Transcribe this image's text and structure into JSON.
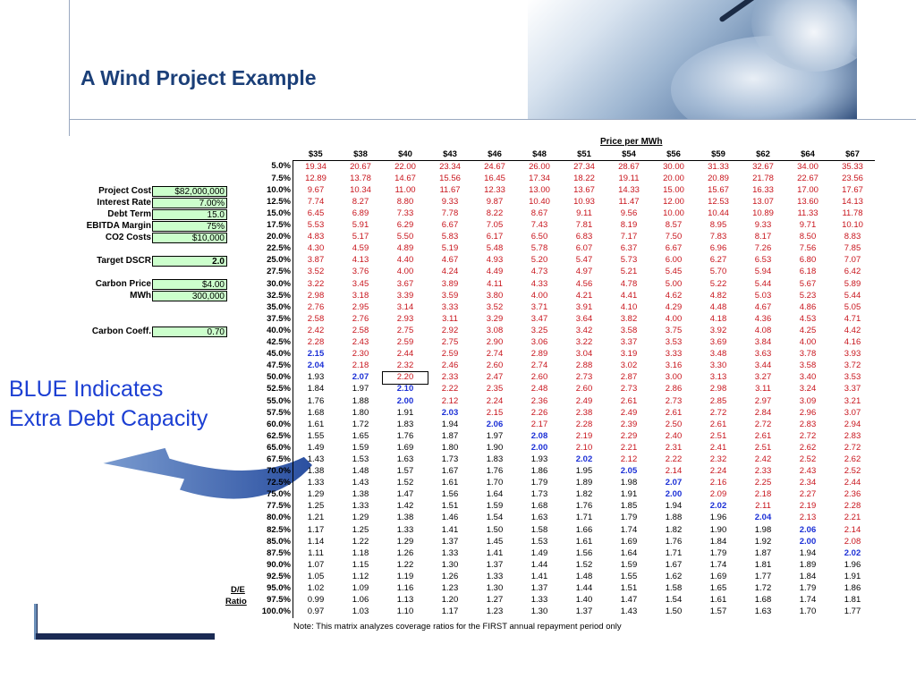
{
  "slide": {
    "title": "A Wind Project Example",
    "callout_line1": "BLUE Indicates",
    "callout_line2": "Extra Debt Capacity",
    "note": "Note: This matrix analyzes coverage ratios for the FIRST annual repayment period only"
  },
  "inputs": [
    {
      "label": "Project Cost",
      "value": "$82,000,000"
    },
    {
      "label": "Interest Rate",
      "value": "7.00%"
    },
    {
      "label": "Debt Term",
      "value": "15.0"
    },
    {
      "label": "EBITDA Margin",
      "value": "75%"
    },
    {
      "label": "CO2 Costs",
      "value": "$10,000"
    },
    {
      "label": "Target DSCR",
      "value": "2.0"
    },
    {
      "label": "Carbon Price",
      "value": "$4.00"
    },
    {
      "label": "MWh",
      "value": "300,000"
    },
    {
      "label": "Carbon Coeff.",
      "value": "0.70"
    }
  ],
  "matrix": {
    "header_title": "Price per MWh",
    "row_axis_label_1": "D/E",
    "row_axis_label_2": "Ratio",
    "prices": [
      "$35",
      "$38",
      "$40",
      "$43",
      "$46",
      "$48",
      "$51",
      "$54",
      "$56",
      "$59",
      "$62",
      "$64",
      "$67"
    ],
    "rows": [
      {
        "de": "5.0%",
        "v": [
          "19.34",
          "20.67",
          "22.00",
          "23.34",
          "24.67",
          "26.00",
          "27.34",
          "28.67",
          "30.00",
          "31.33",
          "32.67",
          "34.00",
          "35.33"
        ]
      },
      {
        "de": "7.5%",
        "v": [
          "12.89",
          "13.78",
          "14.67",
          "15.56",
          "16.45",
          "17.34",
          "18.22",
          "19.11",
          "20.00",
          "20.89",
          "21.78",
          "22.67",
          "23.56"
        ]
      },
      {
        "de": "10.0%",
        "v": [
          "9.67",
          "10.34",
          "11.00",
          "11.67",
          "12.33",
          "13.00",
          "13.67",
          "14.33",
          "15.00",
          "15.67",
          "16.33",
          "17.00",
          "17.67"
        ]
      },
      {
        "de": "12.5%",
        "v": [
          "7.74",
          "8.27",
          "8.80",
          "9.33",
          "9.87",
          "10.40",
          "10.93",
          "11.47",
          "12.00",
          "12.53",
          "13.07",
          "13.60",
          "14.13"
        ]
      },
      {
        "de": "15.0%",
        "v": [
          "6.45",
          "6.89",
          "7.33",
          "7.78",
          "8.22",
          "8.67",
          "9.11",
          "9.56",
          "10.00",
          "10.44",
          "10.89",
          "11.33",
          "11.78"
        ]
      },
      {
        "de": "17.5%",
        "v": [
          "5.53",
          "5.91",
          "6.29",
          "6.67",
          "7.05",
          "7.43",
          "7.81",
          "8.19",
          "8.57",
          "8.95",
          "9.33",
          "9.71",
          "10.10"
        ]
      },
      {
        "de": "20.0%",
        "v": [
          "4.83",
          "5.17",
          "5.50",
          "5.83",
          "6.17",
          "6.50",
          "6.83",
          "7.17",
          "7.50",
          "7.83",
          "8.17",
          "8.50",
          "8.83"
        ]
      },
      {
        "de": "22.5%",
        "v": [
          "4.30",
          "4.59",
          "4.89",
          "5.19",
          "5.48",
          "5.78",
          "6.07",
          "6.37",
          "6.67",
          "6.96",
          "7.26",
          "7.56",
          "7.85"
        ]
      },
      {
        "de": "25.0%",
        "v": [
          "3.87",
          "4.13",
          "4.40",
          "4.67",
          "4.93",
          "5.20",
          "5.47",
          "5.73",
          "6.00",
          "6.27",
          "6.53",
          "6.80",
          "7.07"
        ]
      },
      {
        "de": "27.5%",
        "v": [
          "3.52",
          "3.76",
          "4.00",
          "4.24",
          "4.49",
          "4.73",
          "4.97",
          "5.21",
          "5.45",
          "5.70",
          "5.94",
          "6.18",
          "6.42"
        ]
      },
      {
        "de": "30.0%",
        "v": [
          "3.22",
          "3.45",
          "3.67",
          "3.89",
          "4.11",
          "4.33",
          "4.56",
          "4.78",
          "5.00",
          "5.22",
          "5.44",
          "5.67",
          "5.89"
        ]
      },
      {
        "de": "32.5%",
        "v": [
          "2.98",
          "3.18",
          "3.39",
          "3.59",
          "3.80",
          "4.00",
          "4.21",
          "4.41",
          "4.62",
          "4.82",
          "5.03",
          "5.23",
          "5.44"
        ]
      },
      {
        "de": "35.0%",
        "v": [
          "2.76",
          "2.95",
          "3.14",
          "3.33",
          "3.52",
          "3.71",
          "3.91",
          "4.10",
          "4.29",
          "4.48",
          "4.67",
          "4.86",
          "5.05"
        ]
      },
      {
        "de": "37.5%",
        "v": [
          "2.58",
          "2.76",
          "2.93",
          "3.11",
          "3.29",
          "3.47",
          "3.64",
          "3.82",
          "4.00",
          "4.18",
          "4.36",
          "4.53",
          "4.71"
        ]
      },
      {
        "de": "40.0%",
        "v": [
          "2.42",
          "2.58",
          "2.75",
          "2.92",
          "3.08",
          "3.25",
          "3.42",
          "3.58",
          "3.75",
          "3.92",
          "4.08",
          "4.25",
          "4.42"
        ]
      },
      {
        "de": "42.5%",
        "v": [
          "2.28",
          "2.43",
          "2.59",
          "2.75",
          "2.90",
          "3.06",
          "3.22",
          "3.37",
          "3.53",
          "3.69",
          "3.84",
          "4.00",
          "4.16"
        ]
      },
      {
        "de": "45.0%",
        "v": [
          "2.15",
          "2.30",
          "2.44",
          "2.59",
          "2.74",
          "2.89",
          "3.04",
          "3.19",
          "3.33",
          "3.48",
          "3.63",
          "3.78",
          "3.93"
        ]
      },
      {
        "de": "47.5%",
        "v": [
          "2.04",
          "2.18",
          "2.32",
          "2.46",
          "2.60",
          "2.74",
          "2.88",
          "3.02",
          "3.16",
          "3.30",
          "3.44",
          "3.58",
          "3.72"
        ]
      },
      {
        "de": "50.0%",
        "v": [
          "1.93",
          "2.07",
          "2.20",
          "2.33",
          "2.47",
          "2.60",
          "2.73",
          "2.87",
          "3.00",
          "3.13",
          "3.27",
          "3.40",
          "3.53"
        ]
      },
      {
        "de": "52.5%",
        "v": [
          "1.84",
          "1.97",
          "2.10",
          "2.22",
          "2.35",
          "2.48",
          "2.60",
          "2.73",
          "2.86",
          "2.98",
          "3.11",
          "3.24",
          "3.37"
        ]
      },
      {
        "de": "55.0%",
        "v": [
          "1.76",
          "1.88",
          "2.00",
          "2.12",
          "2.24",
          "2.36",
          "2.49",
          "2.61",
          "2.73",
          "2.85",
          "2.97",
          "3.09",
          "3.21"
        ]
      },
      {
        "de": "57.5%",
        "v": [
          "1.68",
          "1.80",
          "1.91",
          "2.03",
          "2.15",
          "2.26",
          "2.38",
          "2.49",
          "2.61",
          "2.72",
          "2.84",
          "2.96",
          "3.07"
        ]
      },
      {
        "de": "60.0%",
        "v": [
          "1.61",
          "1.72",
          "1.83",
          "1.94",
          "2.06",
          "2.17",
          "2.28",
          "2.39",
          "2.50",
          "2.61",
          "2.72",
          "2.83",
          "2.94"
        ]
      },
      {
        "de": "62.5%",
        "v": [
          "1.55",
          "1.65",
          "1.76",
          "1.87",
          "1.97",
          "2.08",
          "2.19",
          "2.29",
          "2.40",
          "2.51",
          "2.61",
          "2.72",
          "2.83"
        ]
      },
      {
        "de": "65.0%",
        "v": [
          "1.49",
          "1.59",
          "1.69",
          "1.80",
          "1.90",
          "2.00",
          "2.10",
          "2.21",
          "2.31",
          "2.41",
          "2.51",
          "2.62",
          "2.72"
        ]
      },
      {
        "de": "67.5%",
        "v": [
          "1.43",
          "1.53",
          "1.63",
          "1.73",
          "1.83",
          "1.93",
          "2.02",
          "2.12",
          "2.22",
          "2.32",
          "2.42",
          "2.52",
          "2.62"
        ]
      },
      {
        "de": "70.0%",
        "v": [
          "1.38",
          "1.48",
          "1.57",
          "1.67",
          "1.76",
          "1.86",
          "1.95",
          "2.05",
          "2.14",
          "2.24",
          "2.33",
          "2.43",
          "2.52"
        ]
      },
      {
        "de": "72.5%",
        "v": [
          "1.33",
          "1.43",
          "1.52",
          "1.61",
          "1.70",
          "1.79",
          "1.89",
          "1.98",
          "2.07",
          "2.16",
          "2.25",
          "2.34",
          "2.44"
        ]
      },
      {
        "de": "75.0%",
        "v": [
          "1.29",
          "1.38",
          "1.47",
          "1.56",
          "1.64",
          "1.73",
          "1.82",
          "1.91",
          "2.00",
          "2.09",
          "2.18",
          "2.27",
          "2.36"
        ]
      },
      {
        "de": "77.5%",
        "v": [
          "1.25",
          "1.33",
          "1.42",
          "1.51",
          "1.59",
          "1.68",
          "1.76",
          "1.85",
          "1.94",
          "2.02",
          "2.11",
          "2.19",
          "2.28"
        ]
      },
      {
        "de": "80.0%",
        "v": [
          "1.21",
          "1.29",
          "1.38",
          "1.46",
          "1.54",
          "1.63",
          "1.71",
          "1.79",
          "1.88",
          "1.96",
          "2.04",
          "2.13",
          "2.21"
        ]
      },
      {
        "de": "82.5%",
        "v": [
          "1.17",
          "1.25",
          "1.33",
          "1.41",
          "1.50",
          "1.58",
          "1.66",
          "1.74",
          "1.82",
          "1.90",
          "1.98",
          "2.06",
          "2.14"
        ]
      },
      {
        "de": "85.0%",
        "v": [
          "1.14",
          "1.22",
          "1.29",
          "1.37",
          "1.45",
          "1.53",
          "1.61",
          "1.69",
          "1.76",
          "1.84",
          "1.92",
          "2.00",
          "2.08"
        ]
      },
      {
        "de": "87.5%",
        "v": [
          "1.11",
          "1.18",
          "1.26",
          "1.33",
          "1.41",
          "1.49",
          "1.56",
          "1.64",
          "1.71",
          "1.79",
          "1.87",
          "1.94",
          "2.02"
        ]
      },
      {
        "de": "90.0%",
        "v": [
          "1.07",
          "1.15",
          "1.22",
          "1.30",
          "1.37",
          "1.44",
          "1.52",
          "1.59",
          "1.67",
          "1.74",
          "1.81",
          "1.89",
          "1.96"
        ]
      },
      {
        "de": "92.5%",
        "v": [
          "1.05",
          "1.12",
          "1.19",
          "1.26",
          "1.33",
          "1.41",
          "1.48",
          "1.55",
          "1.62",
          "1.69",
          "1.77",
          "1.84",
          "1.91"
        ]
      },
      {
        "de": "95.0%",
        "v": [
          "1.02",
          "1.09",
          "1.16",
          "1.23",
          "1.30",
          "1.37",
          "1.44",
          "1.51",
          "1.58",
          "1.65",
          "1.72",
          "1.79",
          "1.86"
        ]
      },
      {
        "de": "97.5%",
        "v": [
          "0.99",
          "1.06",
          "1.13",
          "1.20",
          "1.27",
          "1.33",
          "1.40",
          "1.47",
          "1.54",
          "1.61",
          "1.68",
          "1.74",
          "1.81"
        ]
      },
      {
        "de": "100.0%",
        "v": [
          "0.97",
          "1.03",
          "1.10",
          "1.17",
          "1.23",
          "1.30",
          "1.37",
          "1.43",
          "1.50",
          "1.57",
          "1.63",
          "1.70",
          "1.77"
        ]
      }
    ],
    "colors": {
      "above_target": "#c8141c",
      "at_target": "#1b2fd6",
      "below_target": "#000000"
    }
  }
}
